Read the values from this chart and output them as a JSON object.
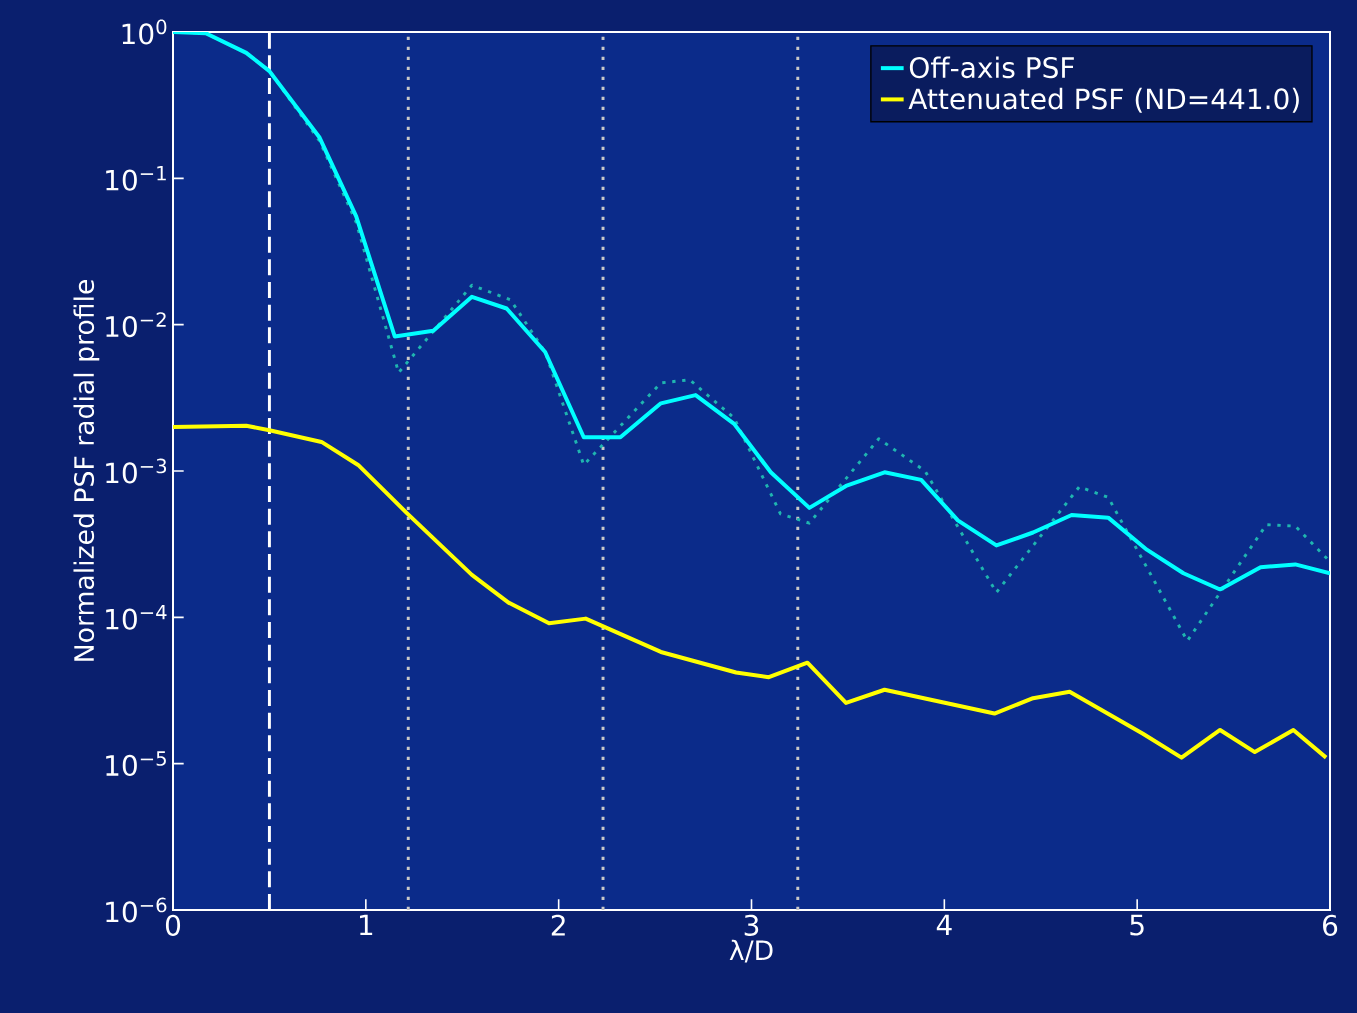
{
  "chart_data": {
    "type": "line",
    "xlabel": "λ/D",
    "ylabel": "Normalized PSF radial profile",
    "log": "y",
    "legend": "top right",
    "xlim": [
      0,
      6
    ],
    "xticks": [
      0,
      1,
      2,
      3,
      4,
      5,
      6
    ],
    "ylim": [
      1e-06,
      1
    ],
    "yticks": [
      {
        "value": 1,
        "label": "10$^{0}$"
      },
      {
        "value": 0.1,
        "label": "10$^{−1}$"
      },
      {
        "value": 0.01,
        "label": "10$^{−2}$"
      },
      {
        "value": 0.001,
        "label": "10$^{−3}$"
      },
      {
        "value": 0.0001,
        "label": "10$^{−4}$"
      },
      {
        "value": 1e-05,
        "label": "10$^{−5}$"
      },
      {
        "value": 1e-06,
        "label": "10$^{−6}$"
      }
    ],
    "series": [
      {
        "name": "Off-axis PSF",
        "color": "#00ffff",
        "x": [
          0,
          0.17,
          0.38,
          0.5,
          0.76,
          0.95,
          1.15,
          1.35,
          1.55,
          1.73,
          1.93,
          2.13,
          2.32,
          2.53,
          2.71,
          2.91,
          3.1,
          3.3,
          3.49,
          3.69,
          3.88,
          4.07,
          4.27,
          4.46,
          4.66,
          4.85,
          5.05,
          5.24,
          5.43,
          5.64,
          5.82,
          6.0
        ],
        "values": [
          1.0,
          0.98,
          0.72,
          0.54,
          0.19,
          0.055,
          0.0083,
          0.0091,
          0.0155,
          0.0129,
          0.0065,
          0.0017,
          0.0017,
          0.0029,
          0.0033,
          0.0021,
          0.00098,
          0.00056,
          0.00079,
          0.00098,
          0.00087,
          0.00046,
          0.00031,
          0.00038,
          0.0005,
          0.00048,
          0.00029,
          0.0002,
          0.000155,
          0.00022,
          0.00023,
          0.0002
        ]
      },
      {
        "name": "Attenuated PSF (ND=441.0)",
        "color": "#ffff00",
        "x": [
          0,
          0.38,
          0.5,
          0.77,
          0.96,
          1.21,
          1.55,
          1.74,
          1.95,
          2.14,
          2.53,
          2.92,
          3.09,
          3.29,
          3.49,
          3.69,
          4.26,
          4.46,
          4.65,
          5.03,
          5.23,
          5.43,
          5.61,
          5.81,
          5.98
        ],
        "values": [
          0.002,
          0.00204,
          0.0019,
          0.00158,
          0.0011,
          0.00052,
          0.000195,
          0.000126,
          9.1e-05,
          9.8e-05,
          5.8e-05,
          4.2e-05,
          3.9e-05,
          4.9e-05,
          2.6e-05,
          3.2e-05,
          2.2e-05,
          2.8e-05,
          3.1e-05,
          1.6e-05,
          1.1e-05,
          1.7e-05,
          1.2e-05,
          1.7e-05,
          1.1e-05
        ]
      },
      {
        "color": "#1fb5b0",
        "line_style": "dotted",
        "x": [
          0,
          0.17,
          0.38,
          0.5,
          0.76,
          0.95,
          1.17,
          1.55,
          1.75,
          1.93,
          2.13,
          2.53,
          2.68,
          2.91,
          3.15,
          3.3,
          3.66,
          3.9,
          4.27,
          4.7,
          4.85,
          5.26,
          5.67,
          5.82,
          6.0
        ],
        "values": [
          1.0,
          0.98,
          0.72,
          0.54,
          0.18,
          0.05,
          0.0047,
          0.0186,
          0.0148,
          0.0065,
          0.0011,
          0.004,
          0.0042,
          0.0023,
          0.00051,
          0.00044,
          0.00166,
          0.001,
          0.000148,
          0.00078,
          0.00066,
          6.9e-05,
          0.00043,
          0.00042,
          0.00024
        ]
      }
    ],
    "ref_lines": [
      {
        "axis": "x",
        "value": 0.5,
        "color": "#ffffff",
        "line_style": "dashed"
      },
      {
        "axis": "x",
        "value": 1.22,
        "color": "#c8c8c8",
        "line_style": "dotted"
      },
      {
        "axis": "x",
        "value": 2.23,
        "color": "#c8c8c8",
        "line_style": "dotted"
      },
      {
        "axis": "x",
        "value": 3.24,
        "color": "#c8c8c8",
        "line_style": "dotted"
      }
    ]
  }
}
